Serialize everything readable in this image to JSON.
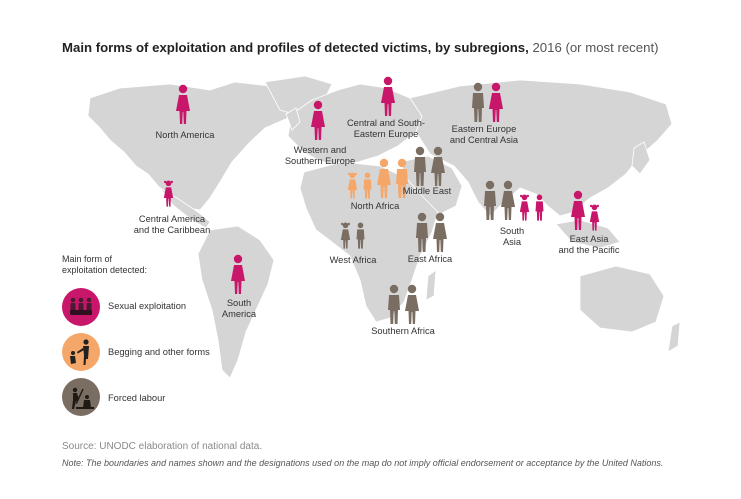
{
  "title": {
    "main": "Main forms of exploitation and profiles of detected victims, by subregions,",
    "year": "2016 (or most recent)"
  },
  "colors": {
    "sexual": "#c8166b",
    "begging": "#f5a76a",
    "forced": "#7a6d62",
    "land": "#d5d5d5"
  },
  "regions": [
    {
      "id": "north-america",
      "label": "North America",
      "form": "sexual",
      "profiles": [
        "woman"
      ]
    },
    {
      "id": "central-america",
      "label": "Central America\nand the Caribbean",
      "form": "sexual",
      "profiles": [
        "girl"
      ]
    },
    {
      "id": "south-america",
      "label": "South\nAmerica",
      "form": "sexual",
      "profiles": [
        "woman"
      ]
    },
    {
      "id": "western-southern-europe",
      "label": "Western and\nSouthern Europe",
      "form": "sexual",
      "profiles": [
        "woman"
      ]
    },
    {
      "id": "central-south-eastern-europe",
      "label": "Central and South-\nEastern Europe",
      "form": "sexual",
      "profiles": [
        "woman"
      ]
    },
    {
      "id": "eastern-europe-central-asia",
      "label": "Eastern Europe\nand Central Asia",
      "form": "mixed",
      "profiles": [
        "man",
        "woman"
      ]
    },
    {
      "id": "north-africa",
      "label": "North Africa",
      "form": "begging",
      "profiles": [
        "girl",
        "boy",
        "woman",
        "man"
      ]
    },
    {
      "id": "middle-east",
      "label": "Middle East",
      "form": "forced",
      "profiles": [
        "man",
        "woman"
      ]
    },
    {
      "id": "west-africa",
      "label": "West Africa",
      "form": "forced",
      "profiles": [
        "girl",
        "boy"
      ]
    },
    {
      "id": "east-africa",
      "label": "East Africa",
      "form": "forced",
      "profiles": [
        "man",
        "woman"
      ]
    },
    {
      "id": "southern-africa",
      "label": "Southern Africa",
      "form": "forced",
      "profiles": [
        "man",
        "woman"
      ]
    },
    {
      "id": "south-asia",
      "label": "South\nAsia",
      "form": "mixed",
      "profiles": [
        "man",
        "woman",
        "girl",
        "boy"
      ]
    },
    {
      "id": "east-asia-pacific",
      "label": "East Asia\nand the Pacific",
      "form": "sexual",
      "profiles": [
        "woman",
        "girl"
      ]
    }
  ],
  "legend": {
    "title": "Main form of\nexploitation detected:",
    "items": [
      {
        "label": "Sexual exploitation",
        "icon": "sexual-exploitation-icon"
      },
      {
        "label": "Begging and other forms",
        "icon": "begging-icon"
      },
      {
        "label": "Forced labour",
        "icon": "forced-labour-icon"
      }
    ]
  },
  "source": "Source: UNODC elaboration of national data.",
  "note": "Note: The boundaries and names shown and the designations used on the map do not imply official endorsement or acceptance by the United Nations."
}
